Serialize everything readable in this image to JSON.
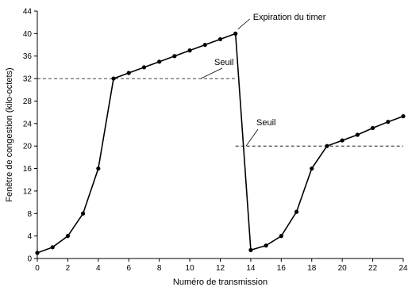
{
  "chart_data": {
    "type": "line",
    "title": "",
    "xlabel": "Numéro de transmission",
    "ylabel": "Fenêtre de congestion (kilo-octets)",
    "xlim": [
      0,
      24
    ],
    "ylim": [
      0,
      44
    ],
    "x_ticks": [
      0,
      2,
      4,
      6,
      8,
      10,
      12,
      14,
      16,
      18,
      20,
      22,
      24
    ],
    "y_ticks": [
      0,
      4,
      8,
      12,
      16,
      20,
      24,
      28,
      32,
      36,
      40,
      44
    ],
    "grid": false,
    "series": [
      {
        "x": [
          0,
          1,
          2,
          3,
          4,
          5,
          6,
          7,
          8,
          9,
          10,
          11,
          12,
          13,
          14,
          15,
          16,
          17,
          18,
          19,
          20,
          21,
          22,
          23,
          24
        ],
        "values": [
          1,
          2,
          4,
          8,
          16,
          32,
          33,
          34,
          35,
          36,
          37,
          38,
          39,
          40,
          1.5,
          2.3,
          4,
          8.3,
          16,
          20,
          21,
          22,
          23.2,
          24.3,
          25.3
        ],
        "color": "#000000"
      }
    ],
    "thresholds": [
      {
        "label": "Seuil",
        "y": 32,
        "x_range": [
          0,
          13
        ]
      },
      {
        "label": "Seuil",
        "y": 20,
        "x_range": [
          13,
          24
        ]
      }
    ],
    "annotations": [
      {
        "text": "Expiration du timer",
        "x": 13,
        "y": 40.5
      }
    ]
  }
}
